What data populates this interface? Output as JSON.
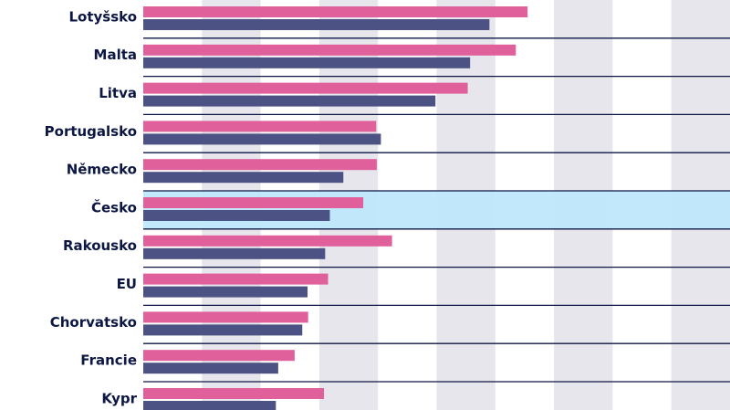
{
  "chart_data": {
    "type": "bar",
    "orientation": "horizontal",
    "title": "",
    "xlabel": "",
    "ylabel": "",
    "grid": true,
    "categories": [
      "Lotyšsko",
      "Malta",
      "Litva",
      "Portugalsko",
      "Německo",
      "Česko",
      "Rakousko",
      "EU",
      "Chorvatsko",
      "Francie",
      "Kypr"
    ],
    "highlight_category": "Česko",
    "xlim": [
      0,
      10
    ],
    "series": [
      {
        "values": [
          6.55,
          6.35,
          5.53,
          3.97,
          3.98,
          3.75,
          4.24,
          3.15,
          2.81,
          2.58,
          3.08
        ]
      },
      {
        "values": [
          5.9,
          5.57,
          4.98,
          4.05,
          3.41,
          3.18,
          3.1,
          2.8,
          2.71,
          2.3,
          2.26
        ]
      }
    ],
    "colors": {
      "series": [
        "#e0609b",
        "#4c5284"
      ],
      "highlight": "#bfe8fb",
      "grid_band": "#e6e6ec",
      "divider": "#0d1744",
      "label": "#0d1744"
    }
  }
}
